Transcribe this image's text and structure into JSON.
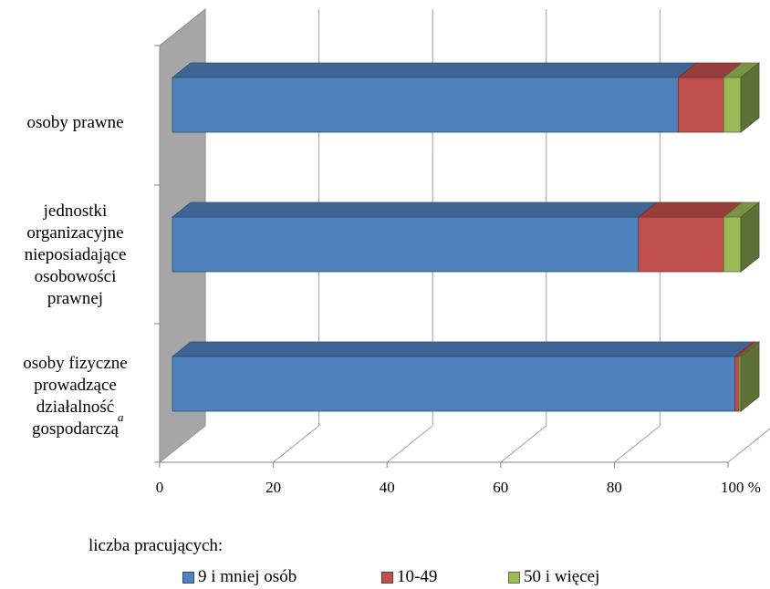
{
  "chart_data": {
    "type": "bar",
    "orientation": "horizontal",
    "stacked": "percent",
    "categories": [
      "osoby prawne",
      "jednostki organizacyjne nieposiadające osobowości prawnej",
      "osoby fizyczne prowadzące działalność gospodarczą"
    ],
    "category_lines": [
      [
        "osoby prawne"
      ],
      [
        "jednostki",
        "organizacyjne",
        "nieposiadające",
        "osobowości",
        "prawnej"
      ],
      [
        "osoby fizyczne",
        "prowadzące",
        "działalność",
        "gospodarczą"
      ]
    ],
    "footnote_mark": "a",
    "series": [
      {
        "name": "9 i mniej osób",
        "color": "#4F81BD",
        "values": [
          89,
          82,
          99
        ]
      },
      {
        "name": "10-49",
        "color": "#C0504D",
        "values": [
          8,
          15,
          0.7
        ]
      },
      {
        "name": "50 i więcej",
        "color": "#9BBB59",
        "values": [
          3,
          3,
          0.3
        ]
      }
    ],
    "xlim": [
      0,
      100
    ],
    "xticks": [
      "0",
      "20",
      "40",
      "60",
      "80",
      "100 %"
    ],
    "grid": true,
    "legend_title": "liczba pracujących:",
    "legend_position": "bottom"
  }
}
